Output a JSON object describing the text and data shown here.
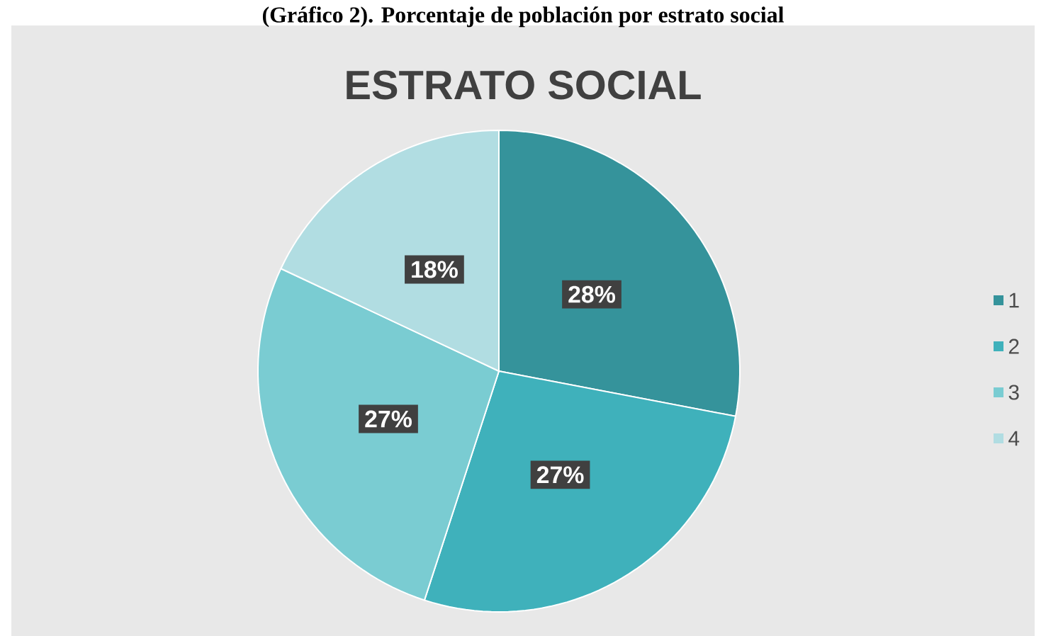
{
  "chart_data": {
    "type": "pie",
    "title": "ESTRATO SOCIAL",
    "annotations": [
      "(Gráfico 2). Porcentaje de población por estrato social"
    ],
    "categories": [
      "1",
      "2",
      "3",
      "4"
    ],
    "values": [
      28,
      27,
      27,
      18
    ],
    "value_labels": [
      "28%",
      "27%",
      "27%",
      "18%"
    ],
    "colors": [
      "#35939b",
      "#3fb1bb",
      "#7accd2",
      "#b1dde2"
    ],
    "legend": "right"
  }
}
